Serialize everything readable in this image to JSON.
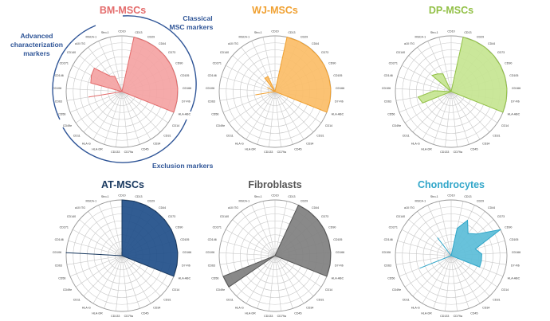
{
  "markers": [
    "CD10",
    "CD13",
    "CD29",
    "CD44",
    "CD73",
    "CD90",
    "CD105",
    "CD166",
    "D7-Fib",
    "HLA-ABC",
    "CD14",
    "CD31",
    "CD34",
    "CD45",
    "CD79a",
    "CD133",
    "HLA-DR",
    "HLA-G",
    "CD11",
    "CD49e",
    "CD56",
    "CD63",
    "CD106",
    "CD146",
    "CD271",
    "CD140",
    "a10 ITG",
    "MSCA-1",
    "Stro-1"
  ],
  "annotations": {
    "classical": [
      "Classical",
      "MSC markers"
    ],
    "advanced": [
      "Advanced",
      "characterization",
      "markers"
    ],
    "exclusion": "Exclusion markers"
  },
  "chart_data": [
    {
      "type": "radar",
      "title": "BM-MSCs",
      "color": "#e46c6c",
      "fill": "#f4a3a3",
      "rlim": [
        0,
        100
      ],
      "categories": [
        "CD10",
        "CD13",
        "CD29",
        "CD44",
        "CD73",
        "CD90",
        "CD105",
        "CD166",
        "D7-Fib",
        "HLA-ABC",
        "CD14",
        "CD31",
        "CD34",
        "CD45",
        "CD79a",
        "CD133",
        "HLA-DR",
        "HLA-G",
        "CD11",
        "CD49e",
        "CD56",
        "CD63",
        "CD106",
        "CD146",
        "CD271",
        "CD140",
        "a10 ITG",
        "MSCA-1",
        "Stro-1"
      ],
      "values": [
        0,
        100,
        100,
        100,
        100,
        100,
        100,
        100,
        100,
        100,
        0,
        0,
        0,
        0,
        0,
        0,
        0,
        0,
        0,
        0,
        0,
        60,
        0,
        58,
        62,
        65,
        35,
        30,
        0
      ]
    },
    {
      "type": "radar",
      "title": "WJ-MSCs",
      "color": "#f0a030",
      "fill": "#fbbd67",
      "rlim": [
        0,
        100
      ],
      "categories": [
        "CD10",
        "CD13",
        "CD29",
        "CD44",
        "CD73",
        "CD90",
        "CD105",
        "CD166",
        "D7-Fib",
        "HLA-ABC",
        "CD14",
        "CD31",
        "CD34",
        "CD45",
        "CD79a",
        "CD133",
        "HLA-DR",
        "HLA-G",
        "CD11",
        "CD49e",
        "CD56",
        "CD63",
        "CD106",
        "CD146",
        "CD271",
        "CD140",
        "a10 ITG",
        "MSCA-1",
        "Stro-1"
      ],
      "values": [
        0,
        100,
        100,
        100,
        100,
        100,
        100,
        100,
        100,
        100,
        0,
        0,
        0,
        0,
        0,
        0,
        0,
        0,
        0,
        0,
        0,
        35,
        0,
        0,
        15,
        0,
        30,
        30,
        0
      ]
    },
    {
      "type": "radar",
      "title": "DP-MSCs",
      "color": "#92c046",
      "fill": "#c5e591",
      "rlim": [
        0,
        100
      ],
      "categories": [
        "CD10",
        "CD13",
        "CD29",
        "CD44",
        "CD73",
        "CD90",
        "CD105",
        "CD166",
        "D7-Fib",
        "HLA-ABC",
        "CD14",
        "CD31",
        "CD34",
        "CD45",
        "CD79a",
        "CD133",
        "HLA-DR",
        "HLA-G",
        "CD11",
        "CD49e",
        "CD56",
        "CD63",
        "CD106",
        "CD146",
        "CD271",
        "CD140",
        "a10 ITG",
        "MSCA-1",
        "Stro-1"
      ],
      "values": [
        0,
        100,
        100,
        100,
        100,
        100,
        100,
        100,
        100,
        100,
        0,
        0,
        0,
        0,
        0,
        0,
        0,
        0,
        0,
        0,
        55,
        60,
        30,
        0,
        0,
        45,
        40,
        35,
        0
      ]
    },
    {
      "type": "radar",
      "title": "AT-MSCs",
      "color": "#17375e",
      "fill": "#1f4e89",
      "rlim": [
        0,
        100
      ],
      "categories": [
        "CD10",
        "CD13",
        "CD29",
        "CD44",
        "CD73",
        "CD90",
        "CD105",
        "CD166",
        "D7-Fib",
        "HLA-ABC",
        "CD14",
        "CD31",
        "CD34",
        "CD45",
        "CD79a",
        "CD133",
        "HLA-DR",
        "HLA-G",
        "CD11",
        "CD49e",
        "CD56",
        "CD63",
        "CD106",
        "CD146",
        "CD271",
        "CD140",
        "a10 ITG",
        "MSCA-1",
        "Stro-1"
      ],
      "values": [
        100,
        100,
        100,
        100,
        100,
        100,
        100,
        100,
        100,
        100,
        0,
        0,
        0,
        0,
        0,
        0,
        0,
        0,
        0,
        0,
        0,
        0,
        100,
        0,
        0,
        0,
        0,
        0,
        0
      ]
    },
    {
      "type": "radar",
      "title": "Fibroblasts",
      "color": "#555555",
      "fill": "#7f7f7f",
      "rlim": [
        0,
        100
      ],
      "categories": [
        "CD10",
        "CD13",
        "CD29",
        "CD44",
        "CD73",
        "CD90",
        "CD105",
        "CD166",
        "D7-Fib",
        "HLA-ABC",
        "CD14",
        "CD31",
        "CD34",
        "CD45",
        "CD79a",
        "CD133",
        "HLA-DR",
        "HLA-G",
        "CD11",
        "CD49e",
        "CD56",
        "CD63",
        "CD106",
        "CD146",
        "CD271",
        "CD140",
        "a10 ITG",
        "MSCA-1",
        "Stro-1"
      ],
      "values": [
        0,
        0,
        100,
        100,
        100,
        100,
        100,
        100,
        100,
        100,
        0,
        0,
        0,
        0,
        0,
        0,
        0,
        0,
        0,
        100,
        100,
        0,
        0,
        0,
        0,
        0,
        0,
        0,
        0
      ]
    },
    {
      "type": "radar",
      "title": "Chondrocytes",
      "color": "#31a6c9",
      "fill": "#5bbdd8",
      "rlim": [
        0,
        100
      ],
      "categories": [
        "CD10",
        "CD13",
        "CD29",
        "CD44",
        "CD73",
        "CD90",
        "CD105",
        "CD166",
        "D7-Fib",
        "HLA-ABC",
        "CD14",
        "CD31",
        "CD34",
        "CD45",
        "CD79a",
        "CD133",
        "HLA-DR",
        "HLA-G",
        "CD11",
        "CD49e",
        "CD56",
        "CD63",
        "CD106",
        "CD146",
        "CD271",
        "CD140",
        "a10 ITG",
        "MSCA-1",
        "Stro-1"
      ],
      "values": [
        0,
        50,
        70,
        50,
        60,
        100,
        45,
        55,
        55,
        55,
        0,
        0,
        0,
        0,
        0,
        0,
        0,
        0,
        0,
        0,
        60,
        0,
        0,
        0,
        0,
        0,
        40,
        0,
        0
      ]
    }
  ]
}
